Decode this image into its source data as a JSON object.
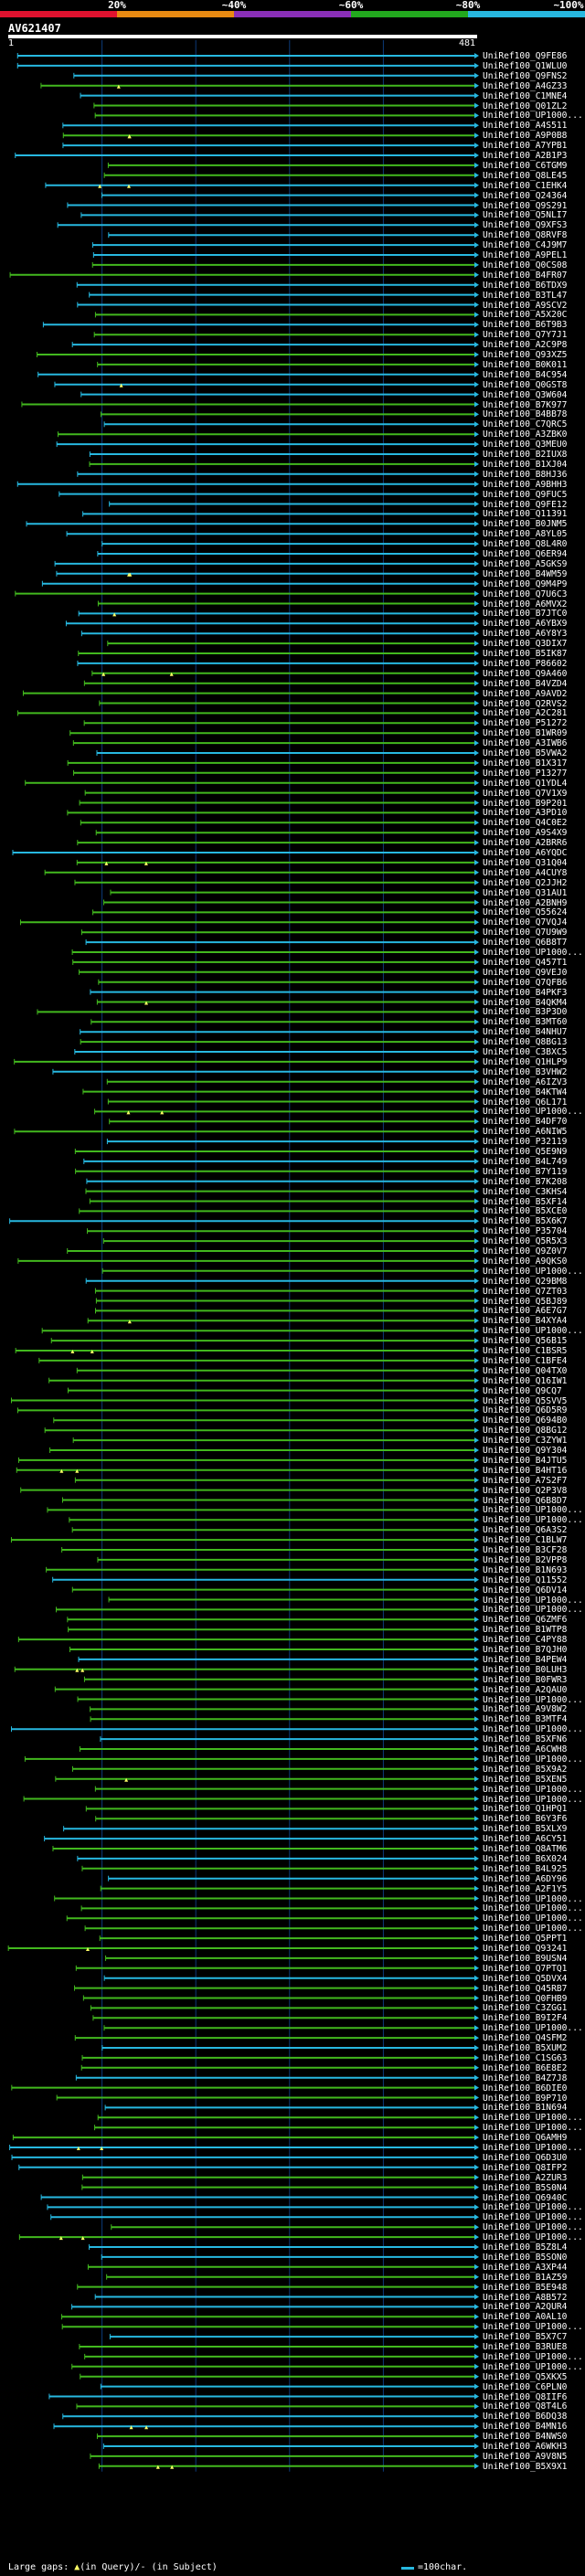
{
  "scale": {
    "labels": [
      "20%",
      "~40%",
      "~60%",
      "~80%",
      "~100%"
    ],
    "colors": [
      "#e0122f",
      "#e88a12",
      "#8a2fb8",
      "#22a81e",
      "#27b8e0"
    ]
  },
  "query": {
    "id": "AV621407",
    "start": "1",
    "end": "481",
    "length": 481
  },
  "colors": {
    "gridline": "#0b3a78",
    "hit_high": "#27b8e0",
    "hit_mid": "#42b81e",
    "gap_mark": "#ffff66",
    "arrow": "#27b8e0"
  },
  "hits": [
    "UniRef100_Q9FE86",
    "UniRef100_Q1WLU0",
    "UniRef100_Q9FNS2",
    "UniRef100_A4GZ33",
    "UniRef100_C1MNE4",
    "UniRef100_Q01ZL2",
    "UniRef100_UP1000...",
    "UniRef100_A4S511",
    "UniRef100_A9P0B8",
    "UniRef100_A7YPB1",
    "UniRef100_A2B1P3",
    "UniRef100_C6TGM9",
    "UniRef100_Q8LE45",
    "UniRef100_C1EHK4",
    "UniRef100_Q24364",
    "UniRef100_Q9S291",
    "UniRef100_Q5NLI7",
    "UniRef100_Q9XFS3",
    "UniRef100_Q8RVF8",
    "UniRef100_C4J9M7",
    "UniRef100_A9PEL1",
    "UniRef100_Q0CS08",
    "UniRef100_B4FR07",
    "UniRef100_B6TDX9",
    "UniRef100_B3TL47",
    "UniRef100_A9SCV2",
    "UniRef100_A5X20C",
    "UniRef100_B6T9B3",
    "UniRef100_Q7Y7J1",
    "UniRef100_A2C9P8",
    "UniRef100_Q93XZ5",
    "UniRef100_B0K011",
    "UniRef100_B4C954",
    "UniRef100_Q0GST8",
    "UniRef100_Q3W604",
    "UniRef100_B7K977",
    "UniRef100_B4BB78",
    "UniRef100_C7QRC5",
    "UniRef100_A3ZBK0",
    "UniRef100_Q3MEU0",
    "UniRef100_B2IUX8",
    "UniRef100_B1XJ04",
    "UniRef100_B8HJ36",
    "UniRef100_A9BHH3",
    "UniRef100_Q9FUC5",
    "UniRef100_Q9FE12",
    "UniRef100_Q11391",
    "UniRef100_B0JNM5",
    "UniRef100_A8YL05",
    "UniRef100_Q8L4R0",
    "UniRef100_Q6ER94",
    "UniRef100_A5GKS9",
    "UniRef100_B4WM59",
    "UniRef100_Q9M4P9",
    "UniRef100_Q7U6C3",
    "UniRef100_A6MVX2",
    "UniRef100_B7JTC0",
    "UniRef100_A6YBX9",
    "UniRef100_A6Y8Y3",
    "UniRef100_Q3DIX7",
    "UniRef100_B5IK87",
    "UniRef100_P86602",
    "UniRef100_Q9A460",
    "UniRef100_B4VZD4",
    "UniRef100_A9AVD2",
    "UniRef100_Q2RVS2",
    "UniRef100_A2C281",
    "UniRef100_P51272",
    "UniRef100_B1WR09",
    "UniRef100_A3IWB6",
    "UniRef100_B5VWA2",
    "UniRef100_B1X317",
    "UniRef100_P13277",
    "UniRef100_Q1YDL4",
    "UniRef100_Q7V1X9",
    "UniRef100_B9P201",
    "UniRef100_A3PD10",
    "UniRef100_Q4C0E2",
    "UniRef100_A9S4X9",
    "UniRef100_A2BRR6",
    "UniRef100_A6YQDC",
    "UniRef100_Q31Q04",
    "UniRef100_A4CUY8",
    "UniRef100_Q2JJH2",
    "UniRef100_Q31AU1",
    "UniRef100_A2BNH9",
    "UniRef100_Q55624",
    "UniRef100_Q7VQJ4",
    "UniRef100_Q7U9W9",
    "UniRef100_Q6B8T7",
    "UniRef100_UP1000...",
    "UniRef100_Q457T1",
    "UniRef100_Q9VEJ0",
    "UniRef100_Q7QFB6",
    "UniRef100_B4PKF3",
    "UniRef100_B4QKM4",
    "UniRef100_B3P3D0",
    "UniRef100_B3MT60",
    "UniRef100_B4NHU7",
    "UniRef100_Q8BG13",
    "UniRef100_C3BXC5",
    "UniRef100_Q1HLP9",
    "UniRef100_B3VHW2",
    "UniRef100_A6IZV3",
    "UniRef100_B4KTW4",
    "UniRef100_Q6L171",
    "UniRef100_UP1000...",
    "UniRef100_B4DF70",
    "UniRef100_A6NIW5",
    "UniRef100_P32119",
    "UniRef100_Q5E9N9",
    "UniRef100_B4L749",
    "UniRef100_B7Y119",
    "UniRef100_B7K208",
    "UniRef100_C3KHS4",
    "UniRef100_B5XF14",
    "UniRef100_B5XCE0",
    "UniRef100_B5X6K7",
    "UniRef100_P35704",
    "UniRef100_Q5R5X3",
    "UniRef100_Q9Z0V7",
    "UniRef100_A9QKS0",
    "UniRef100_UP1000...",
    "UniRef100_Q29BM8",
    "UniRef100_Q7ZT03",
    "UniRef100_Q5BJ89",
    "UniRef100_A6E7G7",
    "UniRef100_B4XYA4",
    "UniRef100_UP1000...",
    "UniRef100_Q56B15",
    "UniRef100_C1BSR5",
    "UniRef100_C1BFE4",
    "UniRef100_Q04TX0",
    "UniRef100_Q16IW1",
    "UniRef100_Q9CQ7",
    "UniRef100_Q5SVV5",
    "UniRef100_Q6D5R9",
    "UniRef100_Q694B0",
    "UniRef100_Q8BG12",
    "UniRef100_C3ZYW1",
    "UniRef100_Q9Y304",
    "UniRef100_B4JTU5",
    "UniRef100_B4HT16",
    "UniRef100_A7S2F7",
    "UniRef100_Q2P3V8",
    "UniRef100_Q6B8D7",
    "UniRef100_UP1000...",
    "UniRef100_UP1000...",
    "UniRef100_Q6A3S2",
    "UniRef100_C1BLW7",
    "UniRef100_B3CF28",
    "UniRef100_B2VPP8",
    "UniRef100_B1N693",
    "UniRef100_Q11552",
    "UniRef100_Q6DV14",
    "UniRef100_UP1000...",
    "UniRef100_UP1000...",
    "UniRef100_Q6ZMF6",
    "UniRef100_B1WTP8",
    "UniRef100_C4PY88",
    "UniRef100_B7QJH0",
    "UniRef100_B4PEW4",
    "UniRef100_B0LUH3",
    "UniRef100_B0FWR3",
    "UniRef100_A2QAU0",
    "UniRef100_UP1000...",
    "UniRef100_A9V8W2",
    "UniRef100_B3MTF4",
    "UniRef100_UP1000...",
    "UniRef100_B5XFN6",
    "UniRef100_A6CWH8",
    "UniRef100_UP1000...",
    "UniRef100_B5X9A2",
    "UniRef100_B5XEN5",
    "UniRef100_UP1000...",
    "UniRef100_UP1000...",
    "UniRef100_Q1HPQ1",
    "UniRef100_B6Y3F6",
    "UniRef100_B5XLX9",
    "UniRef100_A6CY51",
    "UniRef100_Q8ATM6",
    "UniRef100_B6X024",
    "UniRef100_B4L925",
    "UniRef100_A6DY96",
    "UniRef100_A2F1Y5",
    "UniRef100_UP1000...",
    "UniRef100_UP1000...",
    "UniRef100_UP1000...",
    "UniRef100_UP1000...",
    "UniRef100_Q5PPT1",
    "UniRef100_Q93241",
    "UniRef100_B9USN4",
    "UniRef100_Q7PTQ1",
    "UniRef100_Q5DVX4",
    "UniRef100_Q45RB7",
    "UniRef100_Q0FHB9",
    "UniRef100_C3ZGG1",
    "UniRef100_B9I2F4",
    "UniRef100_UP1000...",
    "UniRef100_Q4SFM2",
    "UniRef100_B5XUM2",
    "UniRef100_C1SG63",
    "UniRef100_B6E8E2",
    "UniRef100_B4Z7J8",
    "UniRef100_B6DIE0",
    "UniRef100_B9P710",
    "UniRef100_B1N694",
    "UniRef100_UP1000...",
    "UniRef100_UP1000...",
    "UniRef100_Q6AMH9",
    "UniRef100_UP1000...",
    "UniRef100_Q6D3U0",
    "UniRef100_Q8IFP2",
    "UniRef100_A2ZUR3",
    "UniRef100_B5S0N4",
    "UniRef100_Q6940C",
    "UniRef100_UP1000...",
    "UniRef100_UP1000...",
    "UniRef100_UP1000...",
    "UniRef100_UP1000...",
    "UniRef100_B5Z8L4",
    "UniRef100_B5SON0",
    "UniRef100_A3XP44",
    "UniRef100_B1AZ59",
    "UniRef100_B5E948",
    "UniRef100_A8B572",
    "UniRef100_A2QUR4",
    "UniRef100_A0AL10",
    "UniRef100_UP1000...",
    "UniRef100_B5X7C7",
    "UniRef100_B3RUE8",
    "UniRef100_UP1000...",
    "UniRef100_UP1000...",
    "UniRef100_Q5XKX5",
    "UniRef100_C6PLN0",
    "UniRef100_Q8IIF6",
    "UniRef100_Q8T4L6",
    "UniRef100_B6DQ38",
    "UniRef100_B4MN16",
    "UniRef100_B4NWS0",
    "UniRef100_A6WKH3",
    "UniRef100_A9V8N5",
    "UniRef100_B5X9X1"
  ],
  "legend": {
    "gap_prefix": "Large gaps: ",
    "gap_glyph": "▲",
    "gap_suffix": "(in Query)/- (in Subject)",
    "scale_text": "=100char."
  }
}
